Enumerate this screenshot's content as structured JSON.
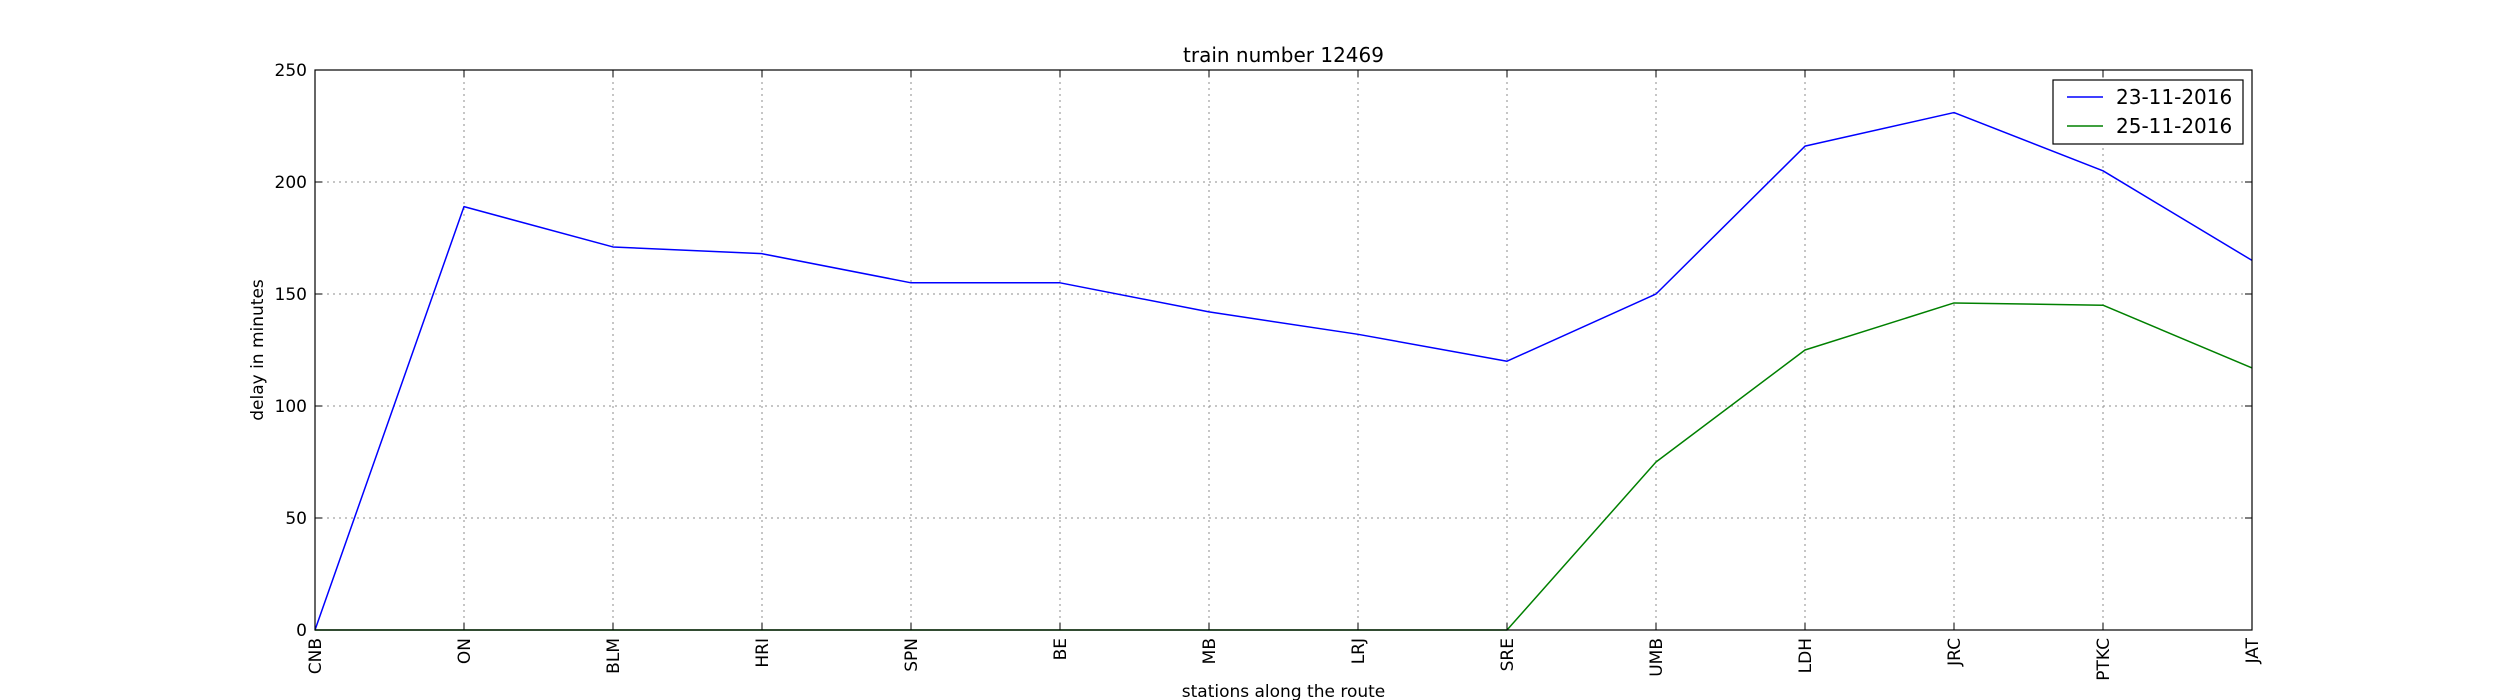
{
  "chart_data": {
    "type": "line",
    "title": "train number 12469",
    "xlabel": "stations along the route",
    "ylabel": "delay in minutes",
    "categories": [
      "CNB",
      "ON",
      "BLM",
      "HRI",
      "SPN",
      "BE",
      "MB",
      "LRJ",
      "SRE",
      "UMB",
      "LDH",
      "JRC",
      "PTKC",
      "JAT"
    ],
    "ylim": [
      0,
      250
    ],
    "yticks": [
      0,
      50,
      100,
      150,
      200,
      250
    ],
    "grid": true,
    "legend_position": "top-right",
    "series": [
      {
        "name": "23-11-2016",
        "color": "#0000ff",
        "values": [
          0,
          189,
          171,
          168,
          155,
          155,
          142,
          132,
          120,
          150,
          216,
          231,
          205,
          165
        ]
      },
      {
        "name": "25-11-2016",
        "color": "#008000",
        "values": [
          0,
          0,
          0,
          0,
          0,
          0,
          0,
          0,
          0,
          75,
          125,
          146,
          145,
          117
        ]
      }
    ]
  }
}
